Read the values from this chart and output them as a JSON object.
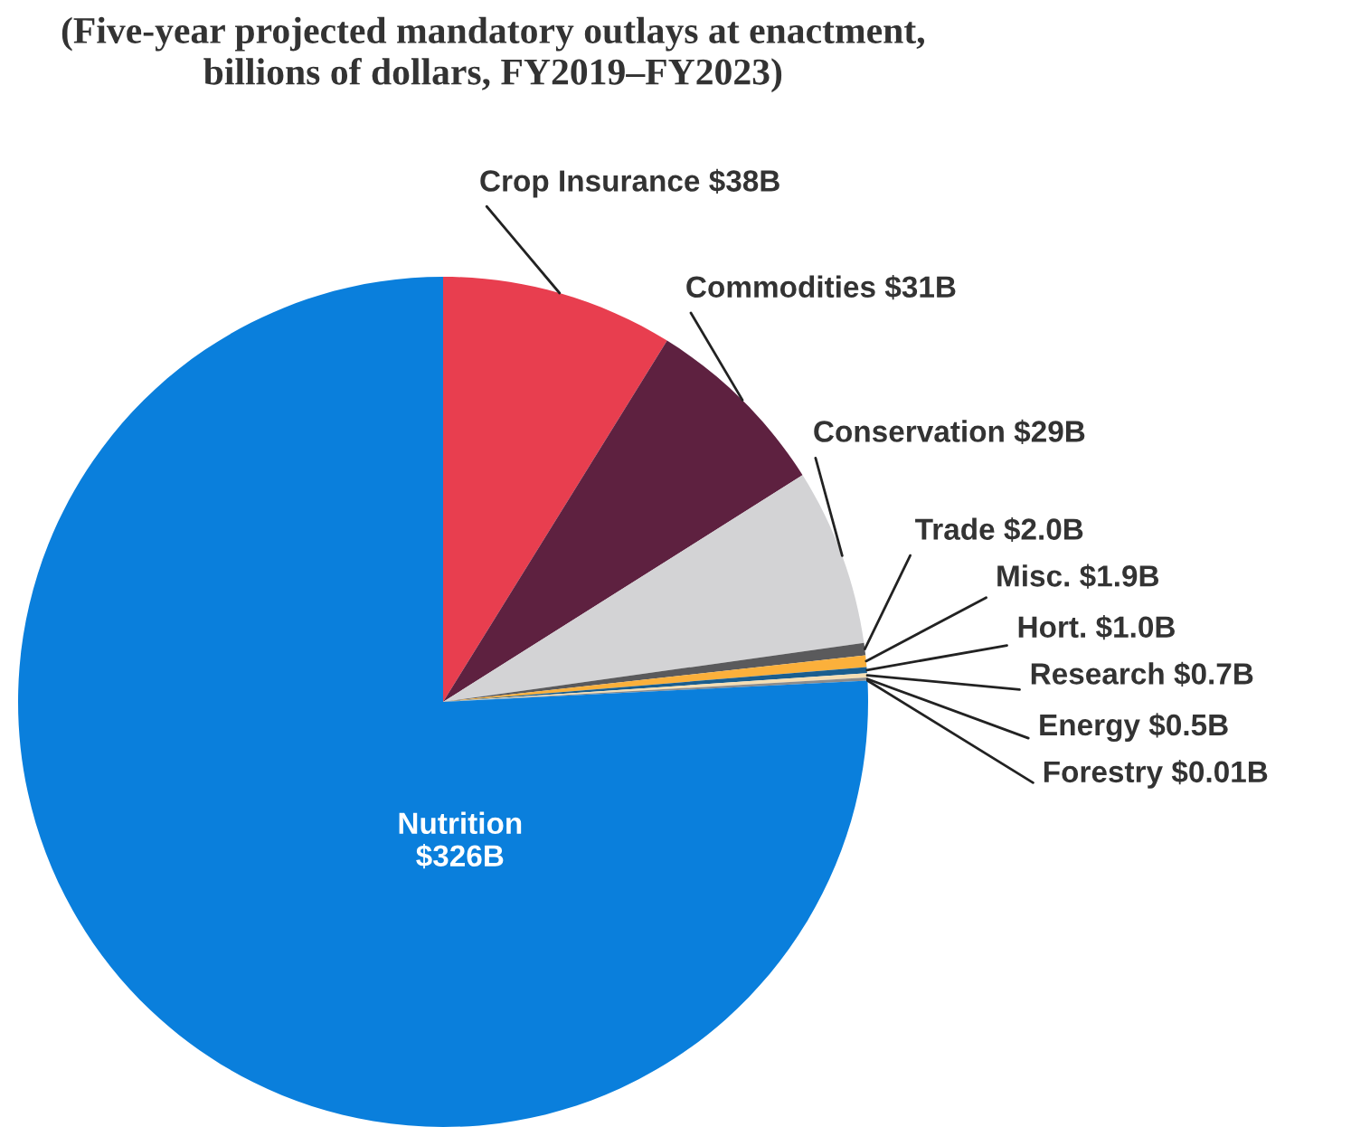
{
  "chart_data": {
    "type": "pie",
    "title": "(Five-year projected mandatory outlays at enactment,\nbillions of dollars, FY2019–FY2023)",
    "categories": [
      "Crop Insurance",
      "Commodities",
      "Conservation",
      "Trade",
      "Misc.",
      "Hort.",
      "Research",
      "Energy",
      "Forestry",
      "Nutrition"
    ],
    "values": [
      38,
      31,
      29,
      2.0,
      1.9,
      1.0,
      0.7,
      0.5,
      0.01,
      326
    ],
    "value_labels": [
      "$38B",
      "$31B",
      "$29B",
      "$2.0B",
      "$1.9B",
      "$1.0B",
      "$0.7B",
      "$0.5B",
      "$0.01B",
      "$326B"
    ],
    "colors": [
      "#e83e4f",
      "#5e2140",
      "#d3d3d5",
      "#5a5a5c",
      "#fbb03b",
      "#1a5e8f",
      "#f5deb3",
      "#8c8c8c",
      "#1a1a1a",
      "#0a7fdc"
    ]
  }
}
